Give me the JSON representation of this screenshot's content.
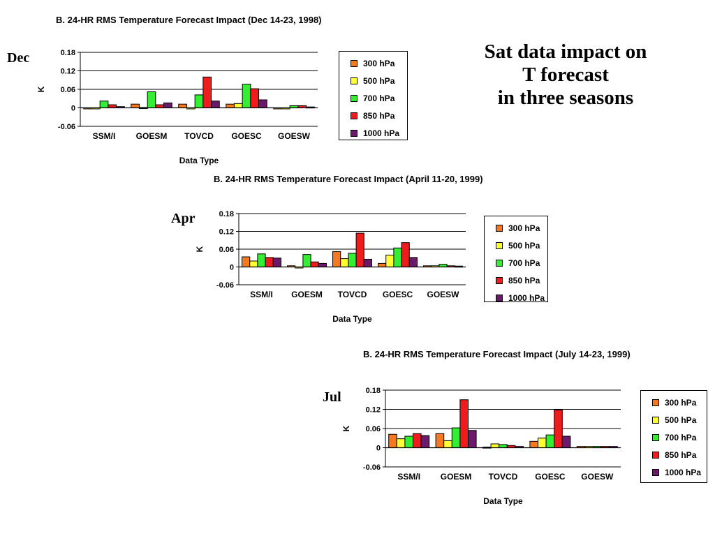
{
  "slide": {
    "title_lines": [
      "Sat data impact on",
      "T forecast",
      "in three seasons"
    ]
  },
  "colors": {
    "300 hPa": "#f47920",
    "500 hPa": "#ffff33",
    "700 hPa": "#33ee33",
    "850 hPa": "#ee1c1c",
    "1000 hPa": "#6b1a6b"
  },
  "chart_data": [
    {
      "type": "bar",
      "season_label": "Dec",
      "title": "B.  24-HR RMS Temperature Forecast Impact (Dec 14-23, 1998)",
      "xlabel": "Data Type",
      "ylabel": "K",
      "ylim": [
        -0.06,
        0.18
      ],
      "yticks": [
        "0.18",
        "0.12",
        "0.06",
        "0",
        "-0.06"
      ],
      "grid": true,
      "legend_position": "right",
      "categories": [
        "SSM/I",
        "GOESM",
        "TOVCD",
        "GOESC",
        "GOESW"
      ],
      "series": [
        {
          "name": "300 hPa",
          "values": [
            -0.003,
            0.012,
            0.012,
            0.012,
            0.0
          ]
        },
        {
          "name": "500 hPa",
          "values": [
            -0.003,
            0.001,
            -0.003,
            0.014,
            -0.003
          ]
        },
        {
          "name": "700 hPa",
          "values": [
            0.022,
            0.052,
            0.042,
            0.077,
            0.007
          ]
        },
        {
          "name": "850 hPa",
          "values": [
            0.01,
            0.01,
            0.1,
            0.062,
            0.007
          ]
        },
        {
          "name": "1000 hPa",
          "values": [
            0.004,
            0.016,
            0.022,
            0.026,
            0.003
          ]
        }
      ]
    },
    {
      "type": "bar",
      "season_label": "Apr",
      "title": "B.  24-HR RMS Temperature Forecast Impact (April 11-20, 1999)",
      "xlabel": "Data Type",
      "ylabel": "K",
      "ylim": [
        -0.06,
        0.18
      ],
      "yticks": [
        "0.18",
        "0.12",
        "0.06",
        "0",
        "-0.06"
      ],
      "grid": true,
      "legend_position": "right",
      "categories": [
        "SSM/I",
        "GOESM",
        "TOVCD",
        "GOESC",
        "GOESW"
      ],
      "series": [
        {
          "name": "300 hPa",
          "values": [
            0.034,
            0.004,
            0.052,
            0.012,
            0.004
          ]
        },
        {
          "name": "500 hPa",
          "values": [
            0.02,
            -0.003,
            0.028,
            0.04,
            0.004
          ]
        },
        {
          "name": "700 hPa",
          "values": [
            0.044,
            0.042,
            0.046,
            0.064,
            0.009
          ]
        },
        {
          "name": "850 hPa",
          "values": [
            0.032,
            0.017,
            0.114,
            0.082,
            0.004
          ]
        },
        {
          "name": "1000 hPa",
          "values": [
            0.03,
            0.012,
            0.026,
            0.032,
            0.003
          ]
        }
      ]
    },
    {
      "type": "bar",
      "season_label": "Jul",
      "title": "B.  24-HR RMS Temperature Forecast Impact (July 14-23, 1999)",
      "xlabel": "Data Type",
      "ylabel": "K",
      "ylim": [
        -0.06,
        0.18
      ],
      "yticks": [
        "0.18",
        "0.12",
        "0.06",
        "0",
        "-0.06"
      ],
      "grid": true,
      "legend_position": "right",
      "categories": [
        "SSM/I",
        "GOESM",
        "TOVCD",
        "GOESC",
        "GOESW"
      ],
      "series": [
        {
          "name": "300 hPa",
          "values": [
            0.042,
            0.044,
            0.002,
            0.02,
            0.004
          ]
        },
        {
          "name": "500 hPa",
          "values": [
            0.028,
            0.022,
            0.012,
            0.03,
            0.004
          ]
        },
        {
          "name": "700 hPa",
          "values": [
            0.036,
            0.062,
            0.01,
            0.04,
            0.004
          ]
        },
        {
          "name": "850 hPa",
          "values": [
            0.044,
            0.15,
            0.007,
            0.118,
            0.004
          ]
        },
        {
          "name": "1000 hPa",
          "values": [
            0.038,
            0.054,
            0.004,
            0.036,
            0.004
          ]
        }
      ]
    }
  ]
}
